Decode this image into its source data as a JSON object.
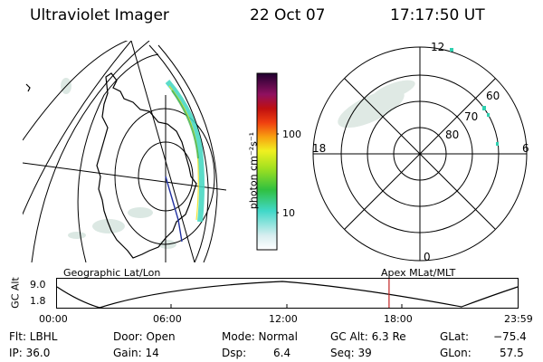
{
  "header": {
    "instrument": "Ultraviolet Imager",
    "date": "22 Oct 07",
    "time": "17:17:50 UT"
  },
  "colorbar": {
    "unit_label": "photon cm⁻²s⁻¹",
    "ticks": [
      "100",
      "10"
    ]
  },
  "polar_panel": {
    "mlt_labels": {
      "top": "12",
      "left": "18",
      "right": "6",
      "bottom": "0"
    },
    "lat_labels": [
      "60",
      "70",
      "80"
    ]
  },
  "map_panel": {
    "coords_label": "Geographic Lat/Lon"
  },
  "orbit_plot": {
    "ylabel": "GC Alt",
    "y_ticks": [
      "9.0",
      "1.8"
    ],
    "x_ticks": [
      "00:00",
      "06:00",
      "12:00",
      "18:00",
      "23:59"
    ],
    "right_label": "Apex  MLat/MLT",
    "current_time_marker_hours": 17.3
  },
  "status": {
    "flt": "Flt: LBHL",
    "ip": "IP: 36.0",
    "door": "Door: Open",
    "gain": "Gain: 14",
    "mode": "Mode: Normal",
    "dsp_label": "Dsp:",
    "dsp_value": "6.4",
    "gc_alt": "GC Alt: 6.3 Re",
    "seq": "Seq: 39",
    "glat_label": "GLat:",
    "glat_value": "−75.4",
    "glon_label": "GLon:",
    "glon_value": "57.5"
  }
}
